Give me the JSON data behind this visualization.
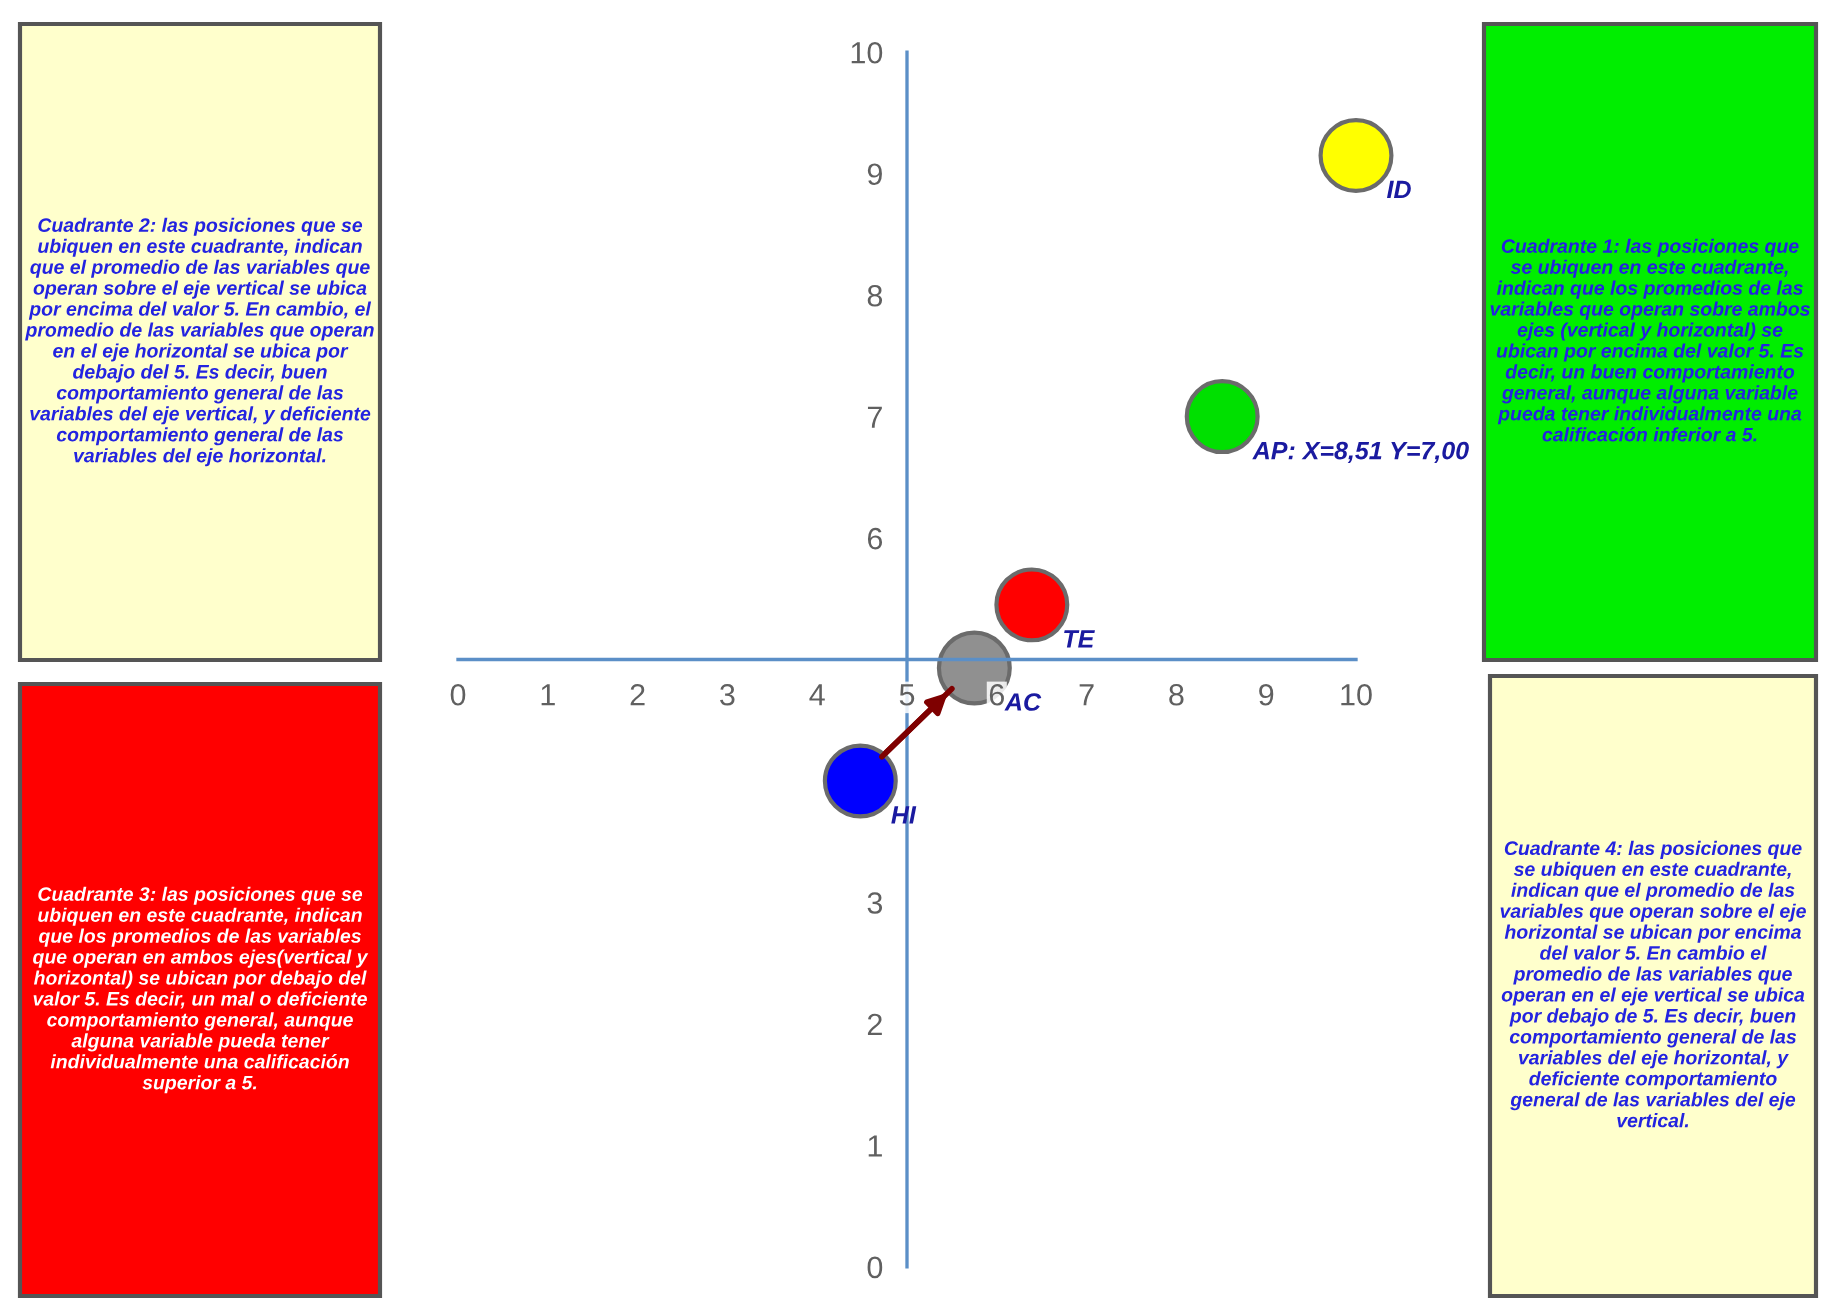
{
  "chart_data": {
    "type": "scatter",
    "series": [
      {
        "x": [
          10.0,
          8.51,
          6.39,
          5.75,
          4.48
        ],
        "values": [
          9.15,
          7.0,
          5.45,
          4.93,
          4.0
        ],
        "colors": [
          "#ffff00",
          "#00e000",
          "#ff0000",
          "#909090",
          "#0000ff"
        ],
        "marker": "circle"
      },
      {
        "type": "line",
        "x": [
          4.72,
          5.5
        ],
        "values": [
          4.2,
          4.76
        ],
        "color": "#7f0000",
        "marker": "none"
      }
    ],
    "xlim": [
      0,
      10
    ],
    "ylim": [
      0,
      10
    ],
    "xticks": [
      0,
      1,
      2,
      3,
      4,
      5,
      6,
      7,
      8,
      9,
      10
    ],
    "yticks": [
      0,
      1,
      2,
      3,
      6,
      7,
      8,
      9,
      10
    ],
    "annotations": [
      {
        "text": "ID",
        "x": 10.0,
        "y": 9.15
      },
      {
        "text": "AP: X=8,51 Y=7,00",
        "x": 8.51,
        "y": 7.0
      },
      {
        "text": "TE",
        "x": 6.39,
        "y": 5.45
      },
      {
        "text": "AC",
        "x": 5.75,
        "y": 4.93
      },
      {
        "text": "HI",
        "x": 4.48,
        "y": 4.0
      },
      "Cuadrante 2: las posiciones que se ubiquen en este cuadrante, indican que el promedio de las variables que operan sobre el eje vertical se ubica por encima del valor 5. En cambio, el promedio de las variables que operan en el eje horizontal se ubica por debajo del 5. Es decir, buen comportamiento general de las variables del eje vertical, y deficiente comportamiento general de las variables del eje horizontal.",
      "Cuadrante 1: las posiciones que se ubiquen en este cuadrante, indican que los promedios de las variables que operan sobre ambos ejes (vertical y horizontal) se ubican por encima del valor 5. Es decir, un buen comportamiento general, aunque alguna variable pueda tener individualmente una calificación inferior a 5.",
      "Cuadrante 3: las posiciones que se ubiquen en este cuadrante, indican que los promedios de las variables que operan en ambos ejes(vertical y horizontal) se ubican por debajo del valor 5. Es decir, un mal o deficiente comportamiento general, aunque alguna variable pueda tener individualmente una calificación superior a 5.",
      "Cuadrante 4: las posiciones que se ubiquen en este cuadrante, indican que el promedio de las variables que operan sobre el eje horizontal se ubican por encima del valor 5. En cambio el promedio de las variables que operan en el eje vertical se ubica por debajo de 5. Es decir, buen comportamiento general de las variables del eje horizontal, y deficiente comportamiento general de las variables del eje vertical."
    ],
    "grid": false
  }
}
